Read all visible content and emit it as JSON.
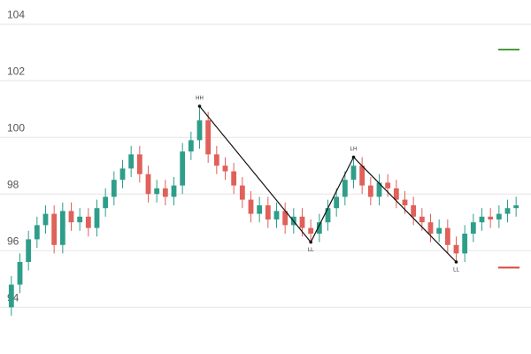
{
  "chart_data": {
    "type": "candlestick",
    "ylim": [
      92.6,
      104.85
    ],
    "yticks": [
      94,
      96,
      98,
      100,
      102,
      104
    ],
    "grid": true,
    "up_color": "#2e9e8a",
    "down_color": "#e0605a",
    "open": [
      94.0,
      94.8,
      95.6,
      96.4,
      96.9,
      97.3,
      96.2,
      97.4,
      97.0,
      97.2,
      96.8,
      97.5,
      97.9,
      98.5,
      98.9,
      99.4,
      98.7,
      98.0,
      98.2,
      97.9,
      98.3,
      99.5,
      99.9,
      100.6,
      99.4,
      99.0,
      98.8,
      98.3,
      97.8,
      97.3,
      97.6,
      97.1,
      97.4,
      96.9,
      97.2,
      96.8,
      96.6,
      97.0,
      97.5,
      97.9,
      98.5,
      99.0,
      98.3,
      97.9,
      98.4,
      98.2,
      97.8,
      97.6,
      97.2,
      97.0,
      96.6,
      96.8,
      96.2,
      95.9,
      96.6,
      97.0,
      97.2,
      97.1,
      97.3,
      97.5
    ],
    "high": [
      95.1,
      95.9,
      96.7,
      97.2,
      97.6,
      97.6,
      97.7,
      97.7,
      97.5,
      97.5,
      97.8,
      98.2,
      98.8,
      99.2,
      99.7,
      99.7,
      99.0,
      98.5,
      98.5,
      98.6,
      99.8,
      100.2,
      101.1,
      100.9,
      99.7,
      99.3,
      99.1,
      98.6,
      98.1,
      97.9,
      97.9,
      97.7,
      97.7,
      97.5,
      97.5,
      97.1,
      97.3,
      97.8,
      98.2,
      98.8,
      99.3,
      99.3,
      98.6,
      98.7,
      98.7,
      98.5,
      98.1,
      97.9,
      97.5,
      97.3,
      97.1,
      97.1,
      96.5,
      96.9,
      97.3,
      97.5,
      97.5,
      97.6,
      97.8,
      97.9
    ],
    "low": [
      93.7,
      94.5,
      95.3,
      96.1,
      96.6,
      95.9,
      95.9,
      96.7,
      96.7,
      96.5,
      96.5,
      97.2,
      97.6,
      98.2,
      98.6,
      98.4,
      97.7,
      97.7,
      97.6,
      97.6,
      98.0,
      99.2,
      99.6,
      99.1,
      98.7,
      98.5,
      98.0,
      97.5,
      97.0,
      97.0,
      96.8,
      96.8,
      96.6,
      96.6,
      96.5,
      96.3,
      96.3,
      96.7,
      97.2,
      97.6,
      98.2,
      98.0,
      97.6,
      97.6,
      97.9,
      97.5,
      97.3,
      96.9,
      96.7,
      96.3,
      96.3,
      95.9,
      95.6,
      95.6,
      96.3,
      96.7,
      96.8,
      96.8,
      97.0,
      97.2
    ],
    "close": [
      94.8,
      95.6,
      96.4,
      96.9,
      97.3,
      96.2,
      97.4,
      97.0,
      97.2,
      96.8,
      97.5,
      97.9,
      98.5,
      98.9,
      99.4,
      98.7,
      98.0,
      98.2,
      97.9,
      98.3,
      99.5,
      99.9,
      100.6,
      99.4,
      99.0,
      98.8,
      98.3,
      97.8,
      97.3,
      97.6,
      97.1,
      97.4,
      96.9,
      97.2,
      96.8,
      96.6,
      97.0,
      97.5,
      97.9,
      98.5,
      99.0,
      98.3,
      97.9,
      98.4,
      98.2,
      97.8,
      97.6,
      97.2,
      97.0,
      96.6,
      96.8,
      96.2,
      95.9,
      96.6,
      97.0,
      97.2,
      97.1,
      97.3,
      97.5,
      97.6
    ],
    "zigzag": [
      {
        "index": 22,
        "value": 101.1,
        "label": "HH"
      },
      {
        "index": 35,
        "value": 96.3,
        "label": "LL"
      },
      {
        "index": 40,
        "value": 99.3,
        "label": "LH"
      },
      {
        "index": 52,
        "value": 95.6,
        "label": "LL"
      }
    ],
    "levels": [
      {
        "value": 103.1,
        "color": "#4a9a3a"
      },
      {
        "value": 95.4,
        "color": "#d9453c"
      }
    ]
  }
}
